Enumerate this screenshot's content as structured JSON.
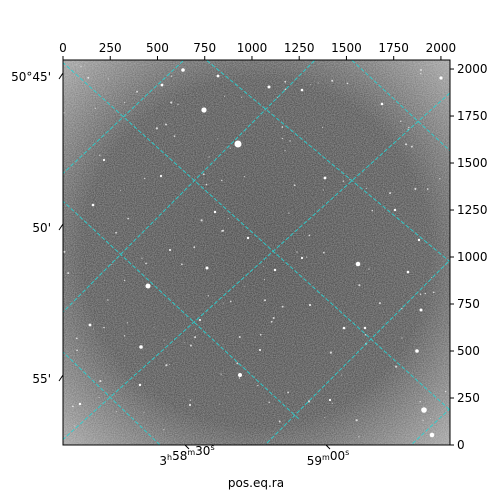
{
  "figure": {
    "xlabel": "pos.eq.ra",
    "pixel_x_ticks": [
      "0",
      "250",
      "500",
      "750",
      "1000",
      "1250",
      "1500",
      "1750",
      "2000"
    ],
    "pixel_y_ticks": [
      "0",
      "250",
      "500",
      "750",
      "1000",
      "1250",
      "1500",
      "1750",
      "2000"
    ],
    "ra_ticks": [
      {
        "h": "3",
        "m": "58",
        "s": "30"
      },
      {
        "h": "",
        "m": "59",
        "s": "00"
      }
    ],
    "dec_ticks": [
      "50°45'",
      "50'",
      "55'"
    ],
    "image_range": {
      "x": [
        0,
        2048
      ],
      "y": [
        0,
        2048
      ]
    },
    "grid_color": "#2ad1d1",
    "image_description": "grayscale astronomical star field with RA/Dec coordinate grid overlay"
  }
}
